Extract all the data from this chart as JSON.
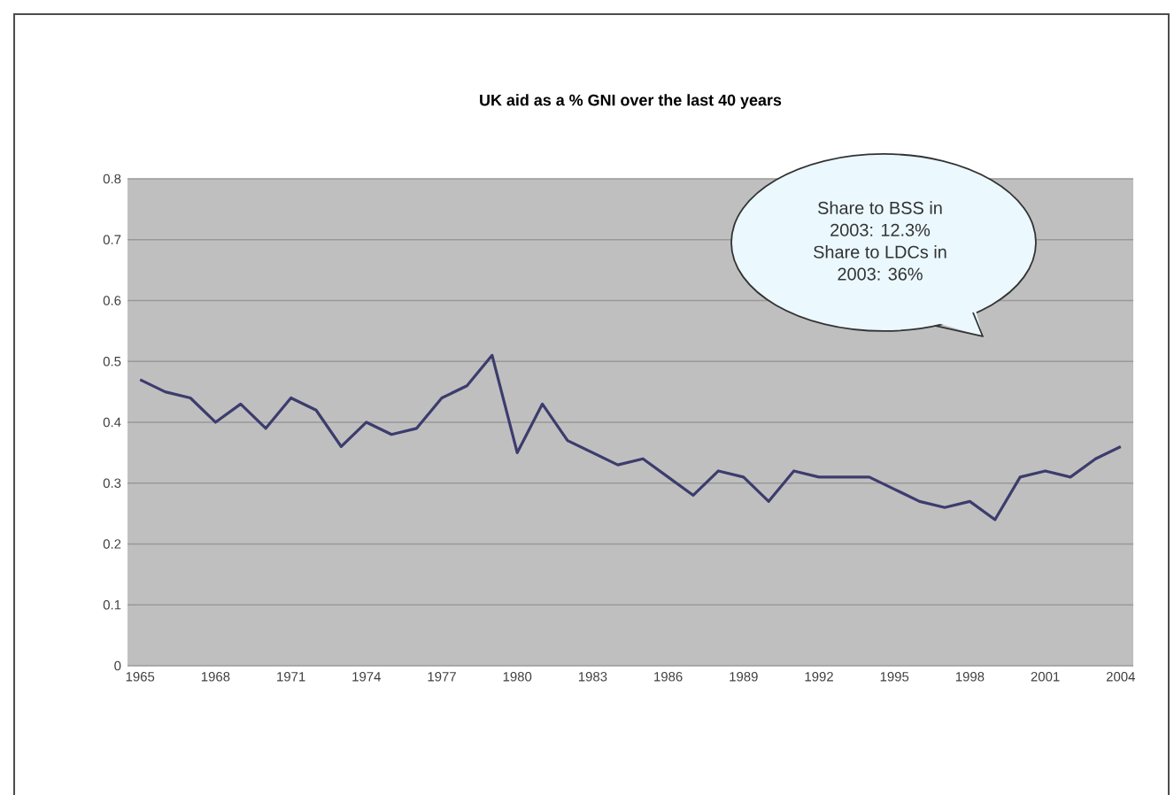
{
  "chart_data": {
    "type": "line",
    "title": "UK aid as a % GNI over the last 40 years",
    "x": [
      1965,
      1966,
      1967,
      1968,
      1969,
      1970,
      1971,
      1972,
      1973,
      1974,
      1975,
      1976,
      1977,
      1978,
      1979,
      1980,
      1981,
      1982,
      1983,
      1984,
      1985,
      1986,
      1987,
      1988,
      1989,
      1990,
      1991,
      1992,
      1993,
      1994,
      1995,
      1996,
      1997,
      1998,
      1999,
      2000,
      2001,
      2002,
      2003,
      2004
    ],
    "values": [
      0.47,
      0.45,
      0.44,
      0.4,
      0.43,
      0.39,
      0.44,
      0.42,
      0.36,
      0.4,
      0.38,
      0.39,
      0.44,
      0.46,
      0.51,
      0.35,
      0.43,
      0.37,
      0.35,
      0.33,
      0.34,
      0.31,
      0.28,
      0.32,
      0.31,
      0.27,
      0.32,
      0.31,
      0.31,
      0.31,
      0.29,
      0.27,
      0.26,
      0.27,
      0.24,
      0.31,
      0.32,
      0.31,
      0.34,
      0.36
    ],
    "color": "#3c3c6e",
    "xlim": [
      1964.5,
      2004.5
    ],
    "xticks": [
      1965,
      1968,
      1971,
      1974,
      1977,
      1980,
      1983,
      1986,
      1989,
      1992,
      1995,
      1998,
      2001,
      2004
    ],
    "ylim": [
      0,
      0.8
    ],
    "yticks": [
      0,
      0.1,
      0.2,
      0.3,
      0.4,
      0.5,
      0.6,
      0.7,
      0.8
    ],
    "grid": "y",
    "annotations": [
      "Share to BSS in 2003: 12.3%",
      "Share to LDCs in 2003: 36%"
    ]
  }
}
